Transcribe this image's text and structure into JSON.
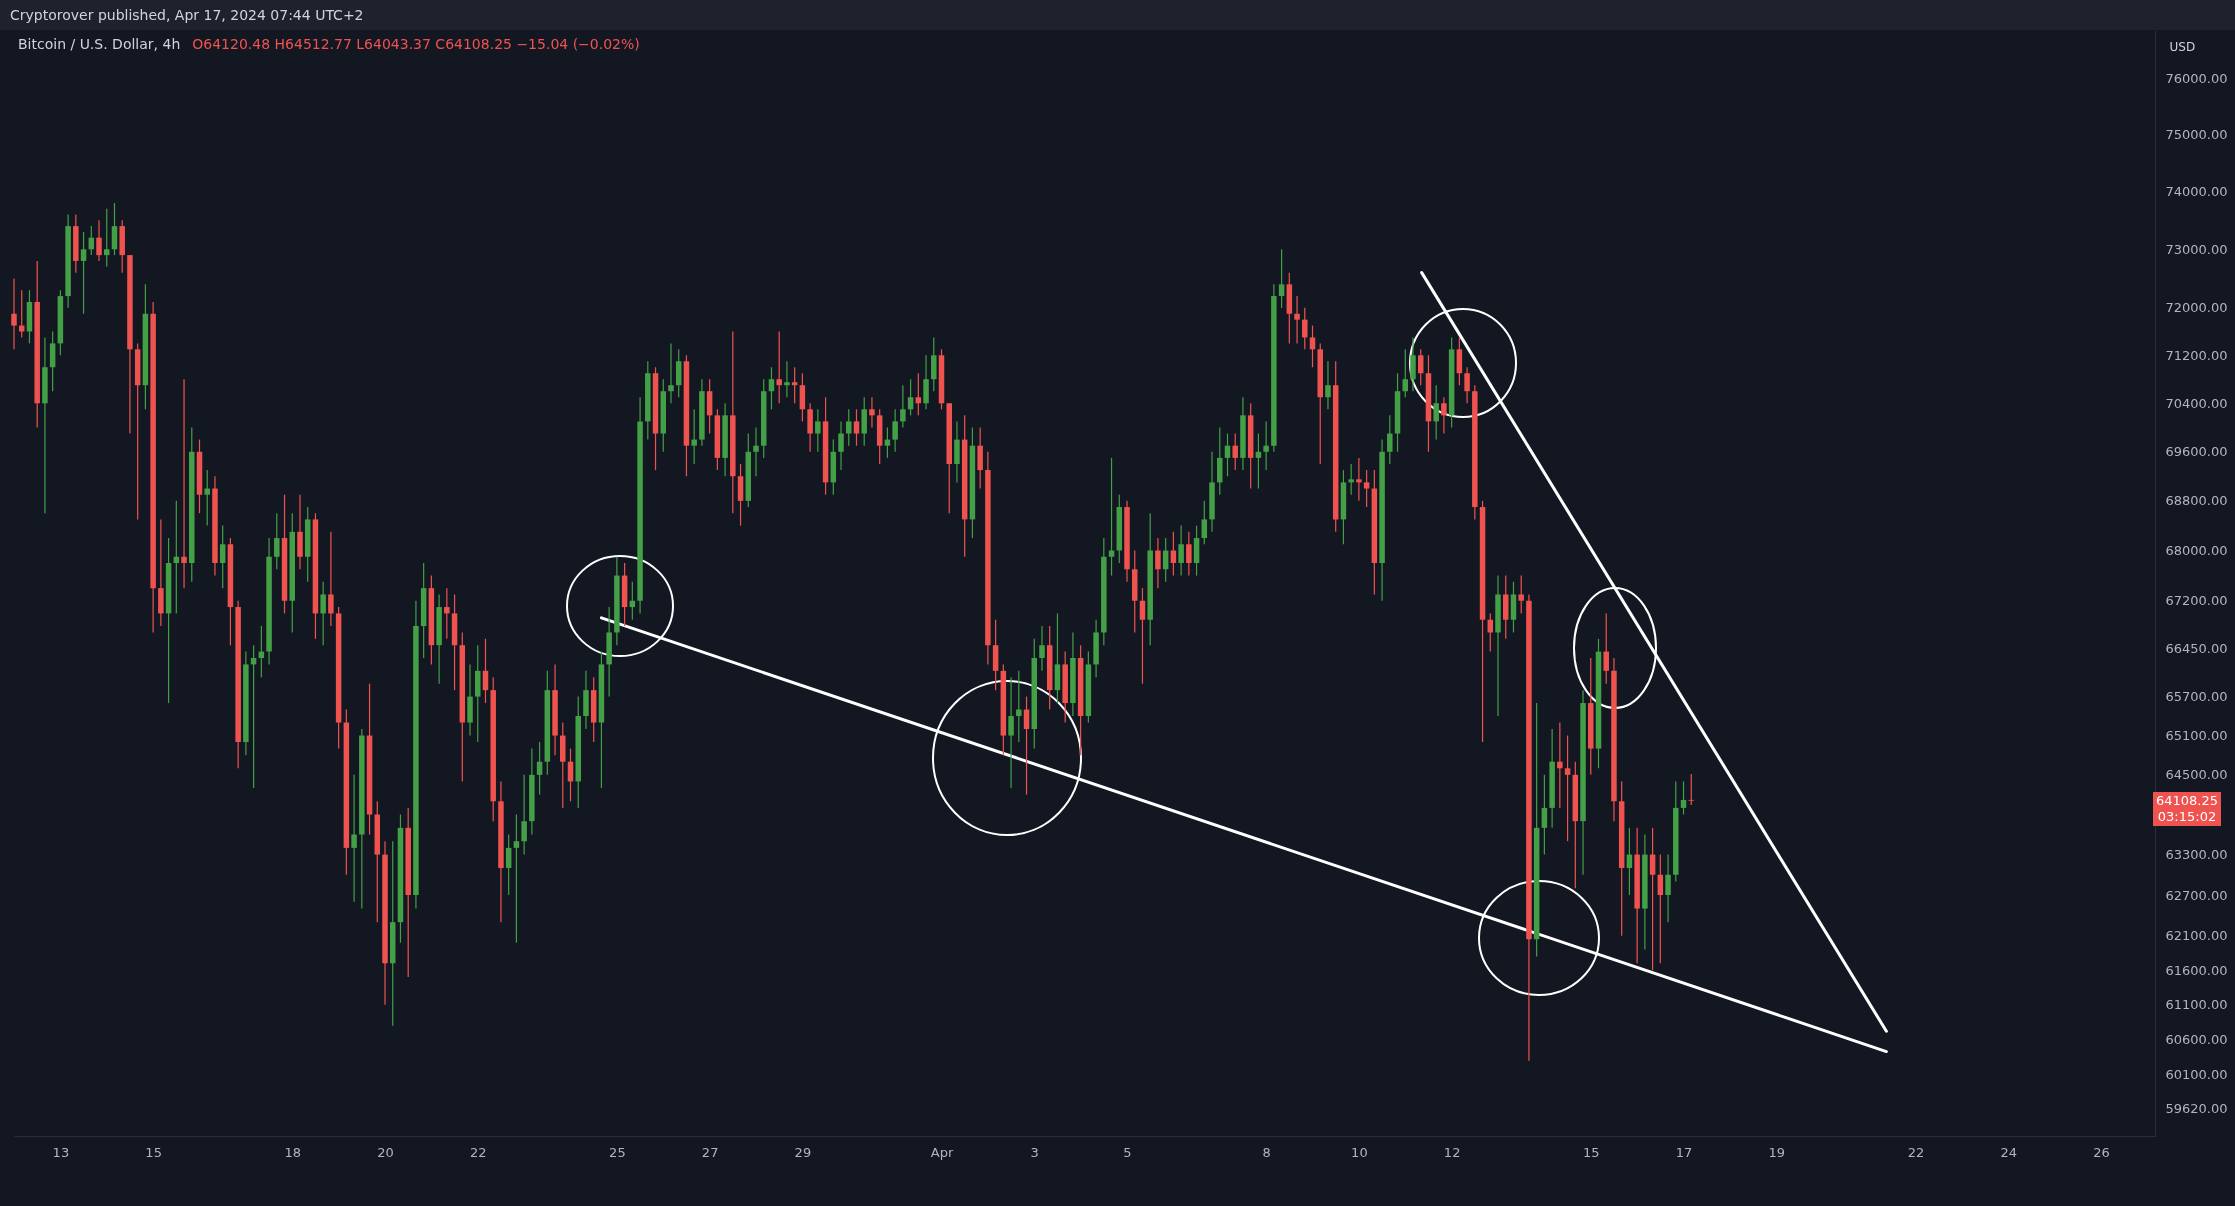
{
  "chart_data": {
    "type": "candlestick",
    "title": "Bitcoin / U.S. Dollar, 4h",
    "subtitle": "Cryptorover published, Apr 17, 2024 07:44 UTC+2",
    "ylabel": "USD",
    "annotations": [
      "O64120.48 H64512.77 L64043.37 C64108.25 −15.04 (−0.02%)",
      "64108.25",
      "03:15:02"
    ],
    "log": true,
    "xlim": [
      "2024-03-12T00:00",
      "2024-04-27T04:00"
    ],
    "xticks": [
      {
        "value": "2024-03-13",
        "label": "13"
      },
      {
        "value": "2024-03-15",
        "label": "15"
      },
      {
        "value": "2024-03-18",
        "label": "18"
      },
      {
        "value": "2024-03-20",
        "label": "20"
      },
      {
        "value": "2024-03-22",
        "label": "22"
      },
      {
        "value": "2024-03-25",
        "label": "25"
      },
      {
        "value": "2024-03-27",
        "label": "27"
      },
      {
        "value": "2024-03-29",
        "label": "29"
      },
      {
        "value": "2024-04-01",
        "label": "Apr"
      },
      {
        "value": "2024-04-03",
        "label": "3"
      },
      {
        "value": "2024-04-05",
        "label": "5"
      },
      {
        "value": "2024-04-08",
        "label": "8"
      },
      {
        "value": "2024-04-10",
        "label": "10"
      },
      {
        "value": "2024-04-12",
        "label": "12"
      },
      {
        "value": "2024-04-15",
        "label": "15"
      },
      {
        "value": "2024-04-17",
        "label": "17"
      },
      {
        "value": "2024-04-19",
        "label": "19"
      },
      {
        "value": "2024-04-22",
        "label": "22"
      },
      {
        "value": "2024-04-24",
        "label": "24"
      },
      {
        "value": "2024-04-26",
        "label": "26"
      }
    ],
    "ylim": [
      59240,
      76870
    ],
    "yticks": [
      {
        "value": 76000,
        "label": "76000.00"
      },
      {
        "value": 75000,
        "label": "75000.00"
      },
      {
        "value": 74000,
        "label": "74000.00"
      },
      {
        "value": 73000,
        "label": "73000.00"
      },
      {
        "value": 72000,
        "label": "72000.00"
      },
      {
        "value": 71200,
        "label": "71200.00"
      },
      {
        "value": 70400,
        "label": "70400.00"
      },
      {
        "value": 69600,
        "label": "69600.00"
      },
      {
        "value": 68800,
        "label": "68800.00"
      },
      {
        "value": 68000,
        "label": "68000.00"
      },
      {
        "value": 67200,
        "label": "67200.00"
      },
      {
        "value": 66450,
        "label": "66450.00"
      },
      {
        "value": 65700,
        "label": "65700.00"
      },
      {
        "value": 65100,
        "label": "65100.00"
      },
      {
        "value": 64500,
        "label": "64500.00"
      },
      {
        "value": 63300,
        "label": "63300.00"
      },
      {
        "value": 62700,
        "label": "62700.00"
      },
      {
        "value": 62100,
        "label": "62100.00"
      },
      {
        "value": 61600,
        "label": "61600.00"
      },
      {
        "value": 61100,
        "label": "61100.00"
      },
      {
        "value": 60600,
        "label": "60600.00"
      },
      {
        "value": 60100,
        "label": "60100.00"
      },
      {
        "value": 59620,
        "label": "59620.00"
      }
    ],
    "x": [
      "2024-03-12T00:00",
      "2024-03-12T04:00",
      "2024-03-12T08:00",
      "2024-03-12T12:00",
      "2024-03-12T16:00",
      "2024-03-12T20:00",
      "2024-03-13T00:00",
      "2024-03-13T04:00",
      "2024-03-13T08:00",
      "2024-03-13T12:00",
      "2024-03-13T16:00",
      "2024-03-13T20:00",
      "2024-03-14T00:00",
      "2024-03-14T04:00",
      "2024-03-14T08:00",
      "2024-03-14T12:00",
      "2024-03-14T16:00",
      "2024-03-14T20:00",
      "2024-03-15T00:00",
      "2024-03-15T04:00",
      "2024-03-15T08:00",
      "2024-03-15T12:00",
      "2024-03-15T16:00",
      "2024-03-15T20:00",
      "2024-03-16T00:00",
      "2024-03-16T04:00",
      "2024-03-16T08:00",
      "2024-03-16T12:00",
      "2024-03-16T16:00",
      "2024-03-16T20:00",
      "2024-03-17T00:00",
      "2024-03-17T04:00",
      "2024-03-17T08:00",
      "2024-03-17T12:00",
      "2024-03-17T16:00",
      "2024-03-17T20:00",
      "2024-03-18T00:00",
      "2024-03-18T04:00",
      "2024-03-18T08:00",
      "2024-03-18T12:00",
      "2024-03-18T16:00",
      "2024-03-18T20:00",
      "2024-03-19T00:00",
      "2024-03-19T04:00",
      "2024-03-19T08:00",
      "2024-03-19T12:00",
      "2024-03-19T16:00",
      "2024-03-19T20:00",
      "2024-03-20T00:00",
      "2024-03-20T04:00",
      "2024-03-20T08:00",
      "2024-03-20T12:00",
      "2024-03-20T16:00",
      "2024-03-20T20:00",
      "2024-03-21T00:00",
      "2024-03-21T04:00",
      "2024-03-21T08:00",
      "2024-03-21T12:00",
      "2024-03-21T16:00",
      "2024-03-21T20:00",
      "2024-03-22T00:00",
      "2024-03-22T04:00",
      "2024-03-22T08:00",
      "2024-03-22T12:00",
      "2024-03-22T16:00",
      "2024-03-22T20:00",
      "2024-03-23T00:00",
      "2024-03-23T04:00",
      "2024-03-23T08:00",
      "2024-03-23T12:00",
      "2024-03-23T16:00",
      "2024-03-23T20:00",
      "2024-03-24T00:00",
      "2024-03-24T04:00",
      "2024-03-24T08:00",
      "2024-03-24T12:00",
      "2024-03-24T16:00",
      "2024-03-24T20:00",
      "2024-03-25T00:00",
      "2024-03-25T04:00",
      "2024-03-25T08:00",
      "2024-03-25T12:00",
      "2024-03-25T16:00",
      "2024-03-25T20:00",
      "2024-03-26T00:00",
      "2024-03-26T04:00",
      "2024-03-26T08:00",
      "2024-03-26T12:00",
      "2024-03-26T16:00",
      "2024-03-26T20:00",
      "2024-03-27T00:00",
      "2024-03-27T04:00",
      "2024-03-27T08:00",
      "2024-03-27T12:00",
      "2024-03-27T16:00",
      "2024-03-27T20:00",
      "2024-03-28T00:00",
      "2024-03-28T04:00",
      "2024-03-28T08:00",
      "2024-03-28T12:00",
      "2024-03-28T16:00",
      "2024-03-28T20:00",
      "2024-03-29T00:00",
      "2024-03-29T04:00",
      "2024-03-29T08:00",
      "2024-03-29T12:00",
      "2024-03-29T16:00",
      "2024-03-29T20:00",
      "2024-03-30T00:00",
      "2024-03-30T04:00",
      "2024-03-30T08:00",
      "2024-03-30T12:00",
      "2024-03-30T16:00",
      "2024-03-30T20:00",
      "2024-03-31T00:00",
      "2024-03-31T04:00",
      "2024-03-31T08:00",
      "2024-03-31T12:00",
      "2024-03-31T16:00",
      "2024-03-31T20:00",
      "2024-04-01T00:00",
      "2024-04-01T04:00",
      "2024-04-01T08:00",
      "2024-04-01T12:00",
      "2024-04-01T16:00",
      "2024-04-01T20:00",
      "2024-04-02T00:00",
      "2024-04-02T04:00",
      "2024-04-02T08:00",
      "2024-04-02T12:00",
      "2024-04-02T16:00",
      "2024-04-02T20:00",
      "2024-04-03T00:00",
      "2024-04-03T04:00",
      "2024-04-03T08:00",
      "2024-04-03T12:00",
      "2024-04-03T16:00",
      "2024-04-03T20:00",
      "2024-04-04T00:00",
      "2024-04-04T04:00",
      "2024-04-04T08:00",
      "2024-04-04T12:00",
      "2024-04-04T16:00",
      "2024-04-04T20:00",
      "2024-04-05T00:00",
      "2024-04-05T04:00",
      "2024-04-05T08:00",
      "2024-04-05T12:00",
      "2024-04-05T16:00",
      "2024-04-05T20:00",
      "2024-04-06T00:00",
      "2024-04-06T04:00",
      "2024-04-06T08:00",
      "2024-04-06T12:00",
      "2024-04-06T16:00",
      "2024-04-06T20:00",
      "2024-04-07T00:00",
      "2024-04-07T04:00",
      "2024-04-07T08:00",
      "2024-04-07T12:00",
      "2024-04-07T16:00",
      "2024-04-07T20:00",
      "2024-04-08T00:00",
      "2024-04-08T04:00",
      "2024-04-08T08:00",
      "2024-04-08T12:00",
      "2024-04-08T16:00",
      "2024-04-08T20:00",
      "2024-04-09T00:00",
      "2024-04-09T04:00",
      "2024-04-09T08:00",
      "2024-04-09T12:00",
      "2024-04-09T16:00",
      "2024-04-09T20:00",
      "2024-04-10T00:00",
      "2024-04-10T04:00",
      "2024-04-10T08:00",
      "2024-04-10T12:00",
      "2024-04-10T16:00",
      "2024-04-10T20:00",
      "2024-04-11T00:00",
      "2024-04-11T04:00",
      "2024-04-11T08:00",
      "2024-04-11T12:00",
      "2024-04-11T16:00",
      "2024-04-11T20:00",
      "2024-04-12T00:00",
      "2024-04-12T04:00",
      "2024-04-12T08:00",
      "2024-04-12T12:00",
      "2024-04-12T16:00",
      "2024-04-12T20:00",
      "2024-04-13T00:00",
      "2024-04-13T04:00",
      "2024-04-13T08:00",
      "2024-04-13T12:00",
      "2024-04-13T16:00",
      "2024-04-13T20:00",
      "2024-04-14T00:00",
      "2024-04-14T04:00",
      "2024-04-14T08:00",
      "2024-04-14T12:00",
      "2024-04-14T16:00",
      "2024-04-14T20:00",
      "2024-04-15T00:00",
      "2024-04-15T04:00",
      "2024-04-15T08:00",
      "2024-04-15T12:00",
      "2024-04-15T16:00",
      "2024-04-15T20:00",
      "2024-04-16T00:00",
      "2024-04-16T04:00",
      "2024-04-16T08:00",
      "2024-04-16T12:00",
      "2024-04-16T16:00",
      "2024-04-16T20:00",
      "2024-04-17T00:00",
      "2024-04-17T04:00"
    ],
    "ohlc": [
      [
        71900,
        72500,
        71300,
        71700
      ],
      [
        71700,
        72300,
        71500,
        71600
      ],
      [
        71600,
        72300,
        71400,
        72100
      ],
      [
        72100,
        72800,
        70000,
        70400
      ],
      [
        70400,
        71500,
        68600,
        71000
      ],
      [
        71000,
        71600,
        70600,
        71400
      ],
      [
        71400,
        72300,
        71200,
        72200
      ],
      [
        72200,
        73600,
        72000,
        73400
      ],
      [
        73400,
        73600,
        72600,
        72800
      ],
      [
        72800,
        73300,
        71900,
        73000
      ],
      [
        73000,
        73400,
        72900,
        73200
      ],
      [
        73200,
        73500,
        72800,
        72900
      ],
      [
        72900,
        73700,
        72700,
        73000
      ],
      [
        73000,
        73800,
        72900,
        73400
      ],
      [
        73400,
        73500,
        72600,
        72900
      ],
      [
        72900,
        72900,
        69900,
        71300
      ],
      [
        71300,
        71400,
        68500,
        70700
      ],
      [
        70700,
        72400,
        70300,
        71900
      ],
      [
        71900,
        72100,
        66700,
        67400
      ],
      [
        67400,
        68500,
        66800,
        67000
      ],
      [
        67000,
        68200,
        65600,
        67800
      ],
      [
        67800,
        68800,
        67000,
        67900
      ],
      [
        67900,
        70800,
        67400,
        67800
      ],
      [
        67800,
        70000,
        67500,
        69600
      ],
      [
        69600,
        69800,
        68600,
        68900
      ],
      [
        68900,
        69300,
        68400,
        69000
      ],
      [
        69000,
        69200,
        67600,
        67800
      ],
      [
        67800,
        68400,
        67400,
        68100
      ],
      [
        68100,
        68200,
        66500,
        67100
      ],
      [
        67100,
        67200,
        64600,
        65000
      ],
      [
        65000,
        66400,
        64800,
        66200
      ],
      [
        66200,
        66500,
        64300,
        66300
      ],
      [
        66300,
        66800,
        66000,
        66400
      ],
      [
        66400,
        68200,
        66200,
        67900
      ],
      [
        67900,
        68600,
        67700,
        68200
      ],
      [
        68200,
        68900,
        67000,
        67200
      ],
      [
        67200,
        68600,
        66700,
        68300
      ],
      [
        68300,
        68900,
        67700,
        67900
      ],
      [
        67900,
        68700,
        67500,
        68500
      ],
      [
        68500,
        68600,
        66600,
        67000
      ],
      [
        67000,
        67500,
        66500,
        67300
      ],
      [
        67300,
        68300,
        66800,
        67000
      ],
      [
        67000,
        67100,
        64900,
        65300
      ],
      [
        65300,
        65500,
        63000,
        63400
      ],
      [
        63400,
        64500,
        62600,
        63600
      ],
      [
        63600,
        65200,
        62500,
        65100
      ],
      [
        65100,
        65900,
        63600,
        63900
      ],
      [
        63900,
        64100,
        62300,
        63300
      ],
      [
        63300,
        63500,
        61100,
        61700
      ],
      [
        61700,
        63500,
        60800,
        62300
      ],
      [
        62300,
        63900,
        62000,
        63700
      ],
      [
        63700,
        64000,
        61500,
        62700
      ],
      [
        62700,
        67200,
        62500,
        66800
      ],
      [
        66800,
        67800,
        66300,
        67400
      ],
      [
        67400,
        67600,
        66200,
        66500
      ],
      [
        66500,
        67300,
        65900,
        67100
      ],
      [
        67100,
        67400,
        66600,
        67000
      ],
      [
        67000,
        67300,
        65800,
        66500
      ],
      [
        66500,
        66700,
        64400,
        65300
      ],
      [
        65300,
        66200,
        65100,
        65700
      ],
      [
        65700,
        66500,
        65000,
        66100
      ],
      [
        66100,
        66600,
        65600,
        65800
      ],
      [
        65800,
        66000,
        63800,
        64100
      ],
      [
        64100,
        64400,
        62300,
        63100
      ],
      [
        63100,
        63600,
        62700,
        63400
      ],
      [
        63400,
        63900,
        62000,
        63500
      ],
      [
        63500,
        64500,
        63300,
        63800
      ],
      [
        63800,
        64900,
        63600,
        64500
      ],
      [
        64500,
        65000,
        64200,
        64700
      ],
      [
        64700,
        66100,
        64500,
        65800
      ],
      [
        65800,
        66200,
        64800,
        65100
      ],
      [
        65100,
        65300,
        64000,
        64700
      ],
      [
        64700,
        64900,
        64100,
        64400
      ],
      [
        64400,
        65700,
        64000,
        65400
      ],
      [
        65400,
        66100,
        65200,
        65800
      ],
      [
        65800,
        66000,
        65000,
        65300
      ],
      [
        65300,
        66400,
        64300,
        66200
      ],
      [
        66200,
        67100,
        65700,
        66700
      ],
      [
        66700,
        67900,
        66500,
        67600
      ],
      [
        67600,
        67800,
        66800,
        67100
      ],
      [
        67100,
        67500,
        66900,
        67200
      ],
      [
        67200,
        70500,
        67000,
        70100
      ],
      [
        70100,
        71100,
        69800,
        70900
      ],
      [
        70900,
        71000,
        69300,
        69900
      ],
      [
        69900,
        70800,
        69600,
        70600
      ],
      [
        70600,
        71400,
        70400,
        70700
      ],
      [
        70700,
        71300,
        70500,
        71100
      ],
      [
        71100,
        71200,
        69200,
        69700
      ],
      [
        69700,
        70300,
        69400,
        69800
      ],
      [
        69800,
        70800,
        69700,
        70600
      ],
      [
        70600,
        70800,
        69900,
        70200
      ],
      [
        70200,
        70300,
        69300,
        69500
      ],
      [
        69500,
        70400,
        69200,
        70200
      ],
      [
        70200,
        71600,
        68600,
        69200
      ],
      [
        69200,
        69400,
        68400,
        68800
      ],
      [
        68800,
        69900,
        68700,
        69600
      ],
      [
        69600,
        70000,
        69200,
        69700
      ],
      [
        69700,
        70800,
        69500,
        70600
      ],
      [
        70600,
        71000,
        70300,
        70800
      ],
      [
        70800,
        71600,
        70400,
        70700
      ],
      [
        70700,
        71100,
        70500,
        70750
      ],
      [
        70750,
        71000,
        70400,
        70700
      ],
      [
        70700,
        70900,
        70100,
        70300
      ],
      [
        70300,
        70400,
        69600,
        69900
      ],
      [
        69900,
        70300,
        69600,
        70100
      ],
      [
        70100,
        70500,
        68900,
        69100
      ],
      [
        69100,
        69800,
        68900,
        69600
      ],
      [
        69600,
        70100,
        69300,
        69900
      ],
      [
        69900,
        70300,
        69700,
        70100
      ],
      [
        70100,
        70300,
        69700,
        69900
      ],
      [
        69900,
        70500,
        69700,
        70300
      ],
      [
        70300,
        70500,
        70000,
        70200
      ],
      [
        70200,
        70300,
        69400,
        69700
      ],
      [
        69700,
        70000,
        69500,
        69800
      ],
      [
        69800,
        70300,
        69600,
        70100
      ],
      [
        70100,
        70700,
        70000,
        70300
      ],
      [
        70300,
        70800,
        70200,
        70500
      ],
      [
        70500,
        70900,
        70200,
        70400
      ],
      [
        70400,
        71200,
        70300,
        70800
      ],
      [
        70800,
        71500,
        70600,
        71200
      ],
      [
        71200,
        71300,
        70300,
        70400
      ],
      [
        70400,
        70400,
        68600,
        69400
      ],
      [
        69400,
        70100,
        69100,
        69800
      ],
      [
        69800,
        70200,
        67900,
        68500
      ],
      [
        68500,
        70000,
        68200,
        69700
      ],
      [
        69700,
        70000,
        69000,
        69300
      ],
      [
        69300,
        69600,
        66200,
        66500
      ],
      [
        66500,
        66900,
        65800,
        66100
      ],
      [
        66100,
        66200,
        64800,
        65100
      ],
      [
        65100,
        66000,
        64300,
        65400
      ],
      [
        65400,
        66100,
        65000,
        65500
      ],
      [
        65500,
        65700,
        64200,
        65200
      ],
      [
        65200,
        66600,
        64900,
        66300
      ],
      [
        66300,
        66800,
        66100,
        66500
      ],
      [
        66500,
        66800,
        65500,
        65800
      ],
      [
        65800,
        67000,
        65600,
        66200
      ],
      [
        66200,
        66400,
        65300,
        65600
      ],
      [
        65600,
        66700,
        65400,
        66300
      ],
      [
        66300,
        66500,
        64800,
        65400
      ],
      [
        65400,
        66400,
        65300,
        66200
      ],
      [
        66200,
        66900,
        66000,
        66700
      ],
      [
        66700,
        68200,
        66500,
        67900
      ],
      [
        67900,
        69500,
        67600,
        68000
      ],
      [
        68000,
        68900,
        67800,
        68700
      ],
      [
        68700,
        68800,
        67500,
        67700
      ],
      [
        67700,
        68000,
        66700,
        67200
      ],
      [
        67200,
        67400,
        65900,
        66900
      ],
      [
        66900,
        68600,
        66500,
        68000
      ],
      [
        68000,
        68200,
        67400,
        67700
      ],
      [
        67700,
        68200,
        67500,
        68000
      ],
      [
        68000,
        68300,
        67600,
        67800
      ],
      [
        67800,
        68400,
        67600,
        68100
      ],
      [
        68100,
        68300,
        67600,
        67800
      ],
      [
        67800,
        68400,
        67600,
        68200
      ],
      [
        68200,
        68800,
        68100,
        68500
      ],
      [
        68500,
        69600,
        68300,
        69100
      ],
      [
        69100,
        70000,
        68900,
        69500
      ],
      [
        69500,
        69900,
        69200,
        69700
      ],
      [
        69700,
        69900,
        69300,
        69500
      ],
      [
        69500,
        70500,
        69300,
        70200
      ],
      [
        70200,
        70400,
        69000,
        69500
      ],
      [
        69500,
        69900,
        69000,
        69600
      ],
      [
        69600,
        70100,
        69300,
        69700
      ],
      [
        69700,
        72400,
        69600,
        72200
      ],
      [
        72200,
        73000,
        72000,
        72400
      ],
      [
        72400,
        72600,
        71400,
        71900
      ],
      [
        71900,
        72200,
        71400,
        71800
      ],
      [
        71800,
        72000,
        71300,
        71500
      ],
      [
        71500,
        71700,
        71000,
        71300
      ],
      [
        71300,
        71400,
        69400,
        70500
      ],
      [
        70500,
        71100,
        70300,
        70700
      ],
      [
        70700,
        71100,
        68300,
        68500
      ],
      [
        68500,
        69300,
        68100,
        69100
      ],
      [
        69100,
        69400,
        68900,
        69150
      ],
      [
        69150,
        69500,
        68800,
        69100
      ],
      [
        69100,
        69300,
        68700,
        69000
      ],
      [
        69000,
        69300,
        67300,
        67800
      ],
      [
        67800,
        69800,
        67200,
        69600
      ],
      [
        69600,
        70200,
        69400,
        69900
      ],
      [
        69900,
        70900,
        69600,
        70600
      ],
      [
        70600,
        71300,
        70500,
        70800
      ],
      [
        70800,
        71500,
        70600,
        71200
      ],
      [
        71200,
        71300,
        70700,
        70900
      ],
      [
        70900,
        71200,
        69600,
        70100
      ],
      [
        70100,
        70700,
        69800,
        70400
      ],
      [
        70400,
        70500,
        69900,
        70200
      ],
      [
        70200,
        71500,
        70000,
        71300
      ],
      [
        71300,
        71500,
        70700,
        70900
      ],
      [
        70900,
        71000,
        70400,
        70600
      ],
      [
        70600,
        70700,
        68500,
        68700
      ],
      [
        68700,
        68800,
        65000,
        66900
      ],
      [
        66900,
        67000,
        66400,
        66700
      ],
      [
        66700,
        67600,
        65400,
        67300
      ],
      [
        67300,
        67600,
        66600,
        66900
      ],
      [
        66900,
        67500,
        66700,
        67300
      ],
      [
        67300,
        67600,
        67000,
        67200
      ],
      [
        67200,
        67300,
        60300,
        62050
      ],
      [
        62050,
        65600,
        61800,
        63700
      ],
      [
        63700,
        64500,
        63300,
        64000
      ],
      [
        64000,
        65200,
        63700,
        64700
      ],
      [
        64700,
        65300,
        64000,
        64600
      ],
      [
        64600,
        65100,
        63500,
        64500
      ],
      [
        64500,
        64700,
        62800,
        63800
      ],
      [
        63800,
        65800,
        63000,
        65600
      ],
      [
        65600,
        66300,
        64500,
        64900
      ],
      [
        64900,
        66600,
        64600,
        66400
      ],
      [
        66400,
        67000,
        65900,
        66100
      ],
      [
        66100,
        66300,
        63800,
        64100
      ],
      [
        64100,
        64400,
        62100,
        63100
      ],
      [
        63100,
        63700,
        62700,
        63300
      ],
      [
        63300,
        63700,
        61700,
        62500
      ],
      [
        62500,
        63600,
        61900,
        63300
      ],
      [
        63300,
        63700,
        61600,
        63000
      ],
      [
        63000,
        63300,
        61700,
        62700
      ],
      [
        62700,
        63300,
        62300,
        63000
      ],
      [
        63000,
        64400,
        62900,
        64000
      ],
      [
        64000,
        64400,
        63900,
        64120
      ],
      [
        64120.48,
        64512.77,
        64043.37,
        64108.25
      ]
    ],
    "colors": [
      "#ef5350",
      "#ef5350",
      "#43a047",
      "#ef5350",
      "#43a047",
      "#43a047",
      "#43a047",
      "#43a047",
      "#ef5350",
      "#43a047",
      "#43a047",
      "#ef5350",
      "#43a047",
      "#43a047",
      "#ef5350",
      "#ef5350",
      "#ef5350",
      "#43a047",
      "#ef5350",
      "#ef5350",
      "#43a047",
      "#43a047",
      "#ef5350",
      "#43a047",
      "#ef5350",
      "#43a047",
      "#ef5350",
      "#43a047",
      "#ef5350",
      "#ef5350",
      "#43a047",
      "#43a047",
      "#43a047",
      "#43a047",
      "#43a047",
      "#ef5350",
      "#43a047",
      "#ef5350",
      "#43a047",
      "#ef5350",
      "#43a047",
      "#ef5350",
      "#ef5350",
      "#ef5350",
      "#43a047",
      "#43a047",
      "#ef5350",
      "#ef5350",
      "#ef5350",
      "#43a047",
      "#43a047",
      "#ef5350",
      "#43a047",
      "#43a047",
      "#ef5350",
      "#43a047",
      "#ef5350",
      "#ef5350",
      "#ef5350",
      "#43a047",
      "#43a047",
      "#ef5350",
      "#ef5350",
      "#ef5350",
      "#43a047",
      "#43a047",
      "#43a047",
      "#43a047",
      "#43a047",
      "#43a047",
      "#ef5350",
      "#ef5350",
      "#ef5350",
      "#43a047",
      "#43a047",
      "#ef5350",
      "#43a047",
      "#43a047",
      "#43a047",
      "#ef5350",
      "#43a047",
      "#43a047",
      "#43a047",
      "#ef5350",
      "#43a047",
      "#43a047",
      "#43a047",
      "#ef5350",
      "#43a047",
      "#43a047",
      "#ef5350",
      "#ef5350",
      "#43a047",
      "#ef5350",
      "#ef5350",
      "#43a047",
      "#43a047",
      "#43a047",
      "#43a047",
      "#ef5350",
      "#43a047",
      "#ef5350",
      "#ef5350",
      "#ef5350",
      "#43a047",
      "#ef5350",
      "#43a047",
      "#43a047",
      "#43a047",
      "#ef5350",
      "#43a047",
      "#ef5350",
      "#ef5350",
      "#43a047",
      "#43a047",
      "#43a047",
      "#43a047",
      "#ef5350",
      "#43a047",
      "#43a047",
      "#ef5350",
      "#ef5350",
      "#43a047",
      "#ef5350",
      "#43a047",
      "#ef5350",
      "#ef5350",
      "#ef5350",
      "#ef5350",
      "#43a047",
      "#43a047",
      "#ef5350",
      "#43a047",
      "#43a047",
      "#ef5350",
      "#43a047",
      "#ef5350",
      "#43a047",
      "#ef5350",
      "#43a047",
      "#43a047",
      "#43a047",
      "#43a047",
      "#43a047",
      "#ef5350",
      "#ef5350",
      "#ef5350",
      "#43a047",
      "#ef5350",
      "#43a047",
      "#ef5350",
      "#43a047",
      "#ef5350",
      "#43a047",
      "#43a047",
      "#43a047",
      "#43a047",
      "#43a047",
      "#ef5350",
      "#43a047",
      "#ef5350",
      "#43a047",
      "#43a047",
      "#43a047",
      "#43a047",
      "#ef5350",
      "#ef5350",
      "#ef5350",
      "#ef5350",
      "#ef5350",
      "#43a047",
      "#ef5350",
      "#43a047",
      "#43a047",
      "#ef5350",
      "#ef5350",
      "#ef5350",
      "#43a047",
      "#43a047",
      "#43a047",
      "#43a047",
      "#43a047",
      "#ef5350",
      "#ef5350",
      "#43a047",
      "#ef5350",
      "#43a047",
      "#ef5350",
      "#ef5350",
      "#ef5350",
      "#ef5350",
      "#ef5350",
      "#43a047",
      "#ef5350",
      "#43a047",
      "#ef5350",
      "#ef5350",
      "#43a047",
      "#43a047",
      "#43a047",
      "#ef5350",
      "#ef5350",
      "#ef5350",
      "#43a047",
      "#ef5350",
      "#43a047",
      "#ef5350",
      "#ef5350",
      "#ef5350",
      "#43a047",
      "#ef5350",
      "#43a047",
      "#ef5350",
      "#ef5350",
      "#43a047",
      "#43a047",
      "#43a047",
      "#ef5350"
    ],
    "series": [
      {
        "type": "line",
        "color": "#ffffff",
        "x": [
          "2024-04-11T08:30",
          "2024-04-21T09:00"
        ],
        "values": [
          72600,
          60720
        ]
      },
      {
        "type": "line",
        "color": "#ffffff",
        "x": [
          "2024-03-24T16:00",
          "2024-04-21T09:00"
        ],
        "values": [
          66930,
          60430
        ]
      }
    ]
  }
}
